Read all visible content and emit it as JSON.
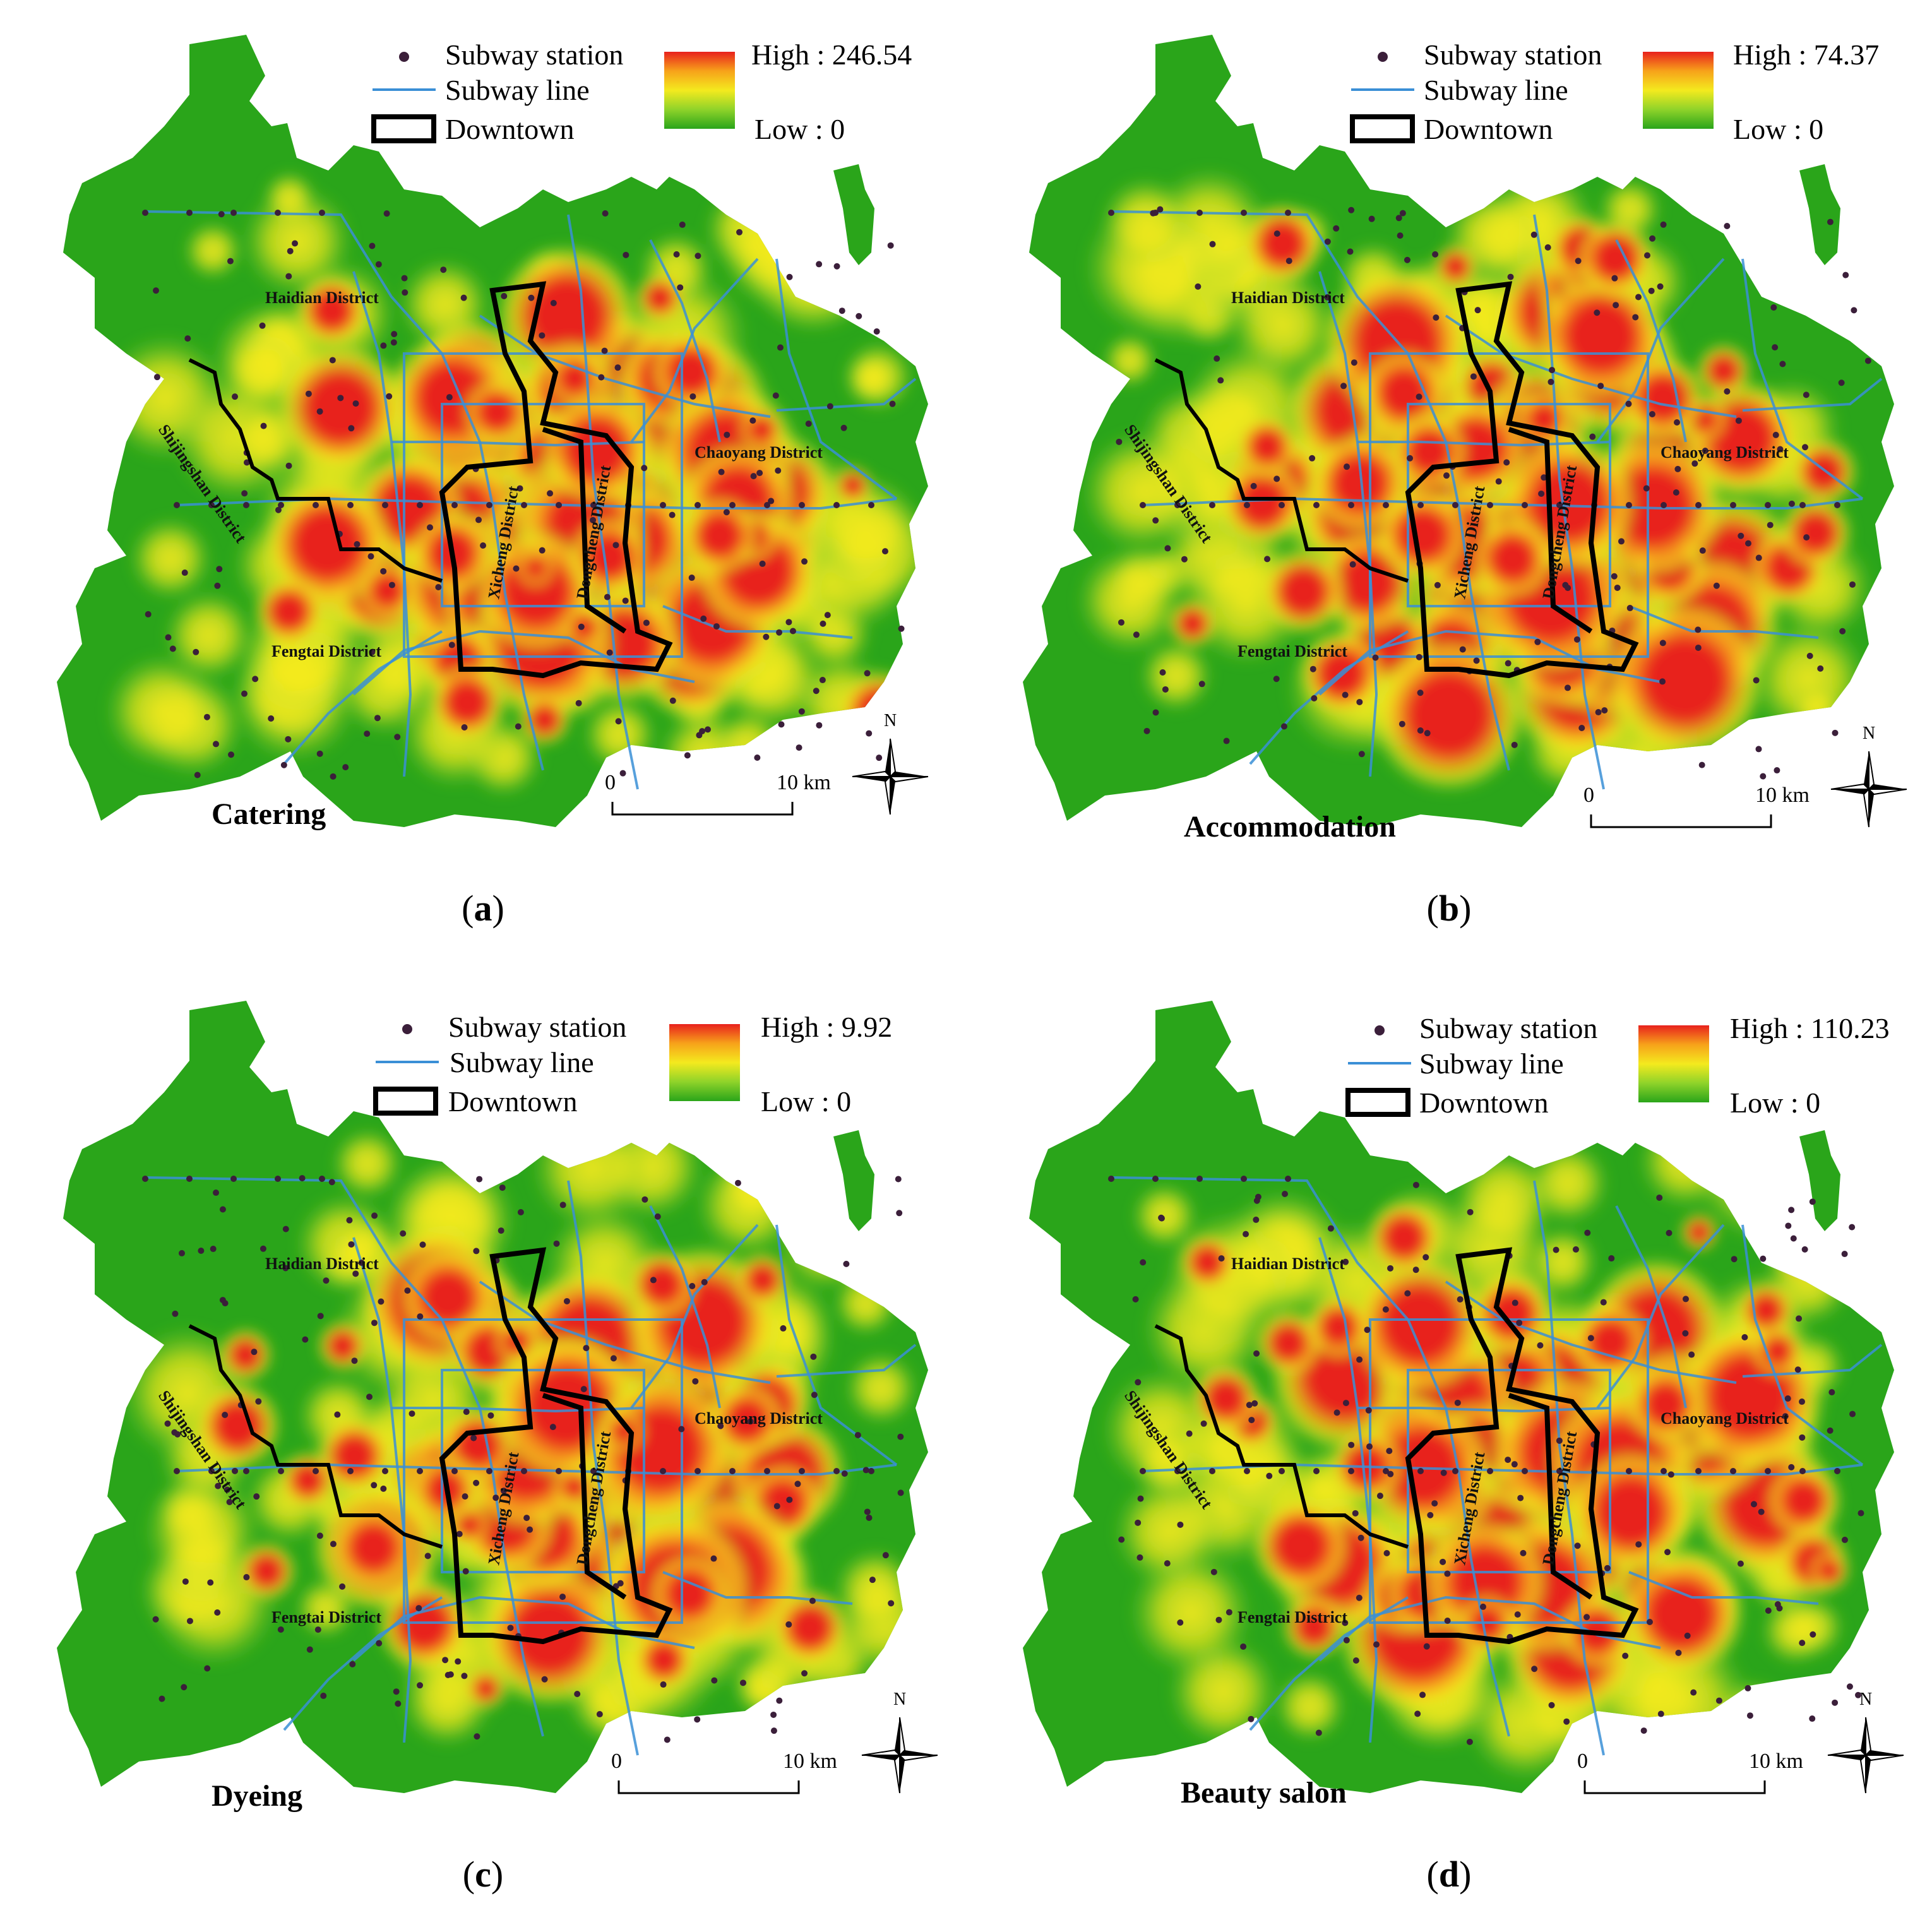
{
  "legend": {
    "station_label": "Subway station",
    "line_label": "Subway line",
    "downtown_label": "Downtown",
    "ramp_colors": [
      "#e8211d",
      "#f7a21a",
      "#f4ea1e",
      "#8fd32a",
      "#2aa51a"
    ]
  },
  "map_style": {
    "base_color": "#2aa51a",
    "line_color": "#3a8fd6",
    "station_color": "#3b1f3a",
    "boundary_color": "#000000"
  },
  "districts": {
    "haidian": "Haidian District",
    "shijingshan": "Shijingshan District",
    "chaoyang": "Chaoyang District",
    "fengtai": "Fengtai District",
    "xicheng": "Xicheng District",
    "dongcheng": "Dongcheng District"
  },
  "scale_bar": {
    "start": "0",
    "end": "10 km",
    "north": "N"
  },
  "panels": [
    {
      "id": "a",
      "caption": "a",
      "title": "Catering",
      "high": "High : 246.54",
      "low": "Low : 0"
    },
    {
      "id": "b",
      "caption": "b",
      "title": "Accommodation",
      "high": "High : 74.37",
      "low": "Low : 0"
    },
    {
      "id": "c",
      "caption": "c",
      "title": "Dyeing",
      "high": "High : 9.92",
      "low": "Low : 0"
    },
    {
      "id": "d",
      "caption": "d",
      "title": "Beauty salon",
      "high": "High : 110.23",
      "low": "Low : 0"
    }
  ]
}
